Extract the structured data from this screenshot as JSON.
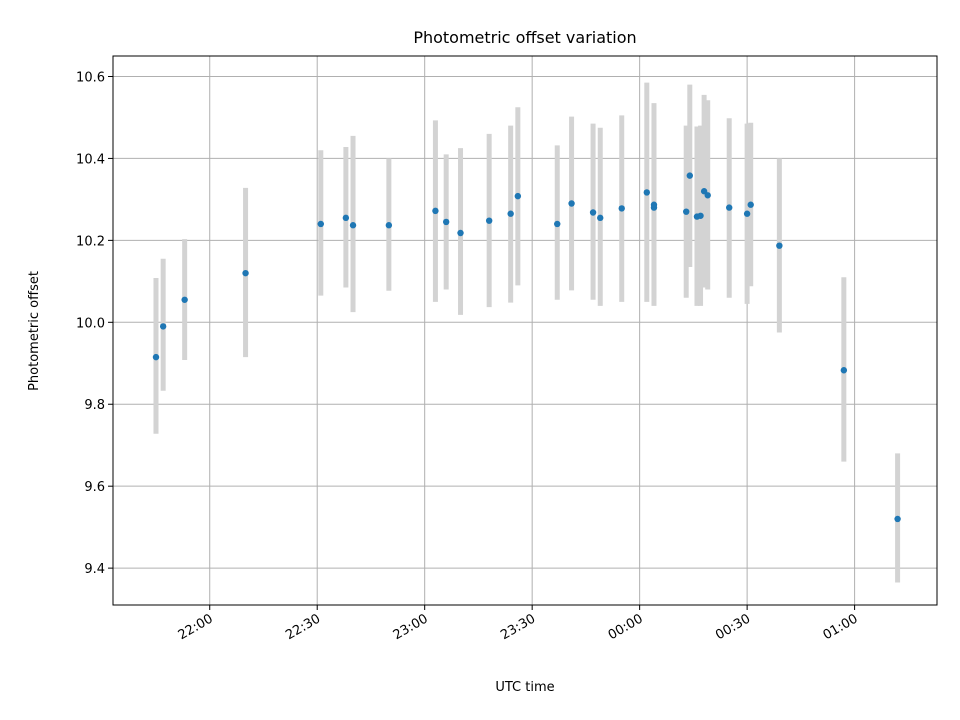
{
  "chart_data": {
    "type": "scatter",
    "title": "Photometric offset variation",
    "xlabel": "UTC time",
    "ylabel": "Photometric offset",
    "x_axis": {
      "unit": "time of day (UTC), continuing past midnight",
      "range": [
        "21:33",
        "01:23"
      ],
      "ticks": [
        "22:00",
        "22:30",
        "23:00",
        "23:30",
        "00:00",
        "00:30",
        "01:00"
      ]
    },
    "y_axis": {
      "range": [
        9.31,
        10.65
      ],
      "ticks": [
        "9.4",
        "9.6",
        "9.8",
        "10.0",
        "10.2",
        "10.4",
        "10.6"
      ]
    },
    "grid": true,
    "colors": {
      "points": "#1f77b4",
      "errorbars": "#d3d3d3",
      "grid": "#b0b0b0"
    },
    "series": [
      {
        "points": [
          {
            "x": "21:45",
            "y": 9.915,
            "lo": 9.728,
            "hi": 10.108
          },
          {
            "x": "21:47",
            "y": 9.99,
            "lo": 9.833,
            "hi": 10.155
          },
          {
            "x": "21:53",
            "y": 10.055,
            "lo": 9.908,
            "hi": 10.203
          },
          {
            "x": "22:10",
            "y": 10.12,
            "lo": 9.915,
            "hi": 10.328
          },
          {
            "x": "22:31",
            "y": 10.24,
            "lo": 10.065,
            "hi": 10.42
          },
          {
            "x": "22:38",
            "y": 10.255,
            "lo": 10.085,
            "hi": 10.428
          },
          {
            "x": "22:40",
            "y": 10.237,
            "lo": 10.025,
            "hi": 10.455
          },
          {
            "x": "22:50",
            "y": 10.237,
            "lo": 10.077,
            "hi": 10.4
          },
          {
            "x": "23:03",
            "y": 10.272,
            "lo": 10.05,
            "hi": 10.493
          },
          {
            "x": "23:06",
            "y": 10.245,
            "lo": 10.08,
            "hi": 10.41
          },
          {
            "x": "23:10",
            "y": 10.218,
            "lo": 10.018,
            "hi": 10.425
          },
          {
            "x": "23:18",
            "y": 10.248,
            "lo": 10.037,
            "hi": 10.46
          },
          {
            "x": "23:24",
            "y": 10.265,
            "lo": 10.048,
            "hi": 10.48
          },
          {
            "x": "23:26",
            "y": 10.308,
            "lo": 10.09,
            "hi": 10.525
          },
          {
            "x": "23:37",
            "y": 10.24,
            "lo": 10.055,
            "hi": 10.432
          },
          {
            "x": "23:41",
            "y": 10.29,
            "lo": 10.078,
            "hi": 10.502
          },
          {
            "x": "23:47",
            "y": 10.268,
            "lo": 10.055,
            "hi": 10.485
          },
          {
            "x": "23:49",
            "y": 10.255,
            "lo": 10.04,
            "hi": 10.475
          },
          {
            "x": "23:55",
            "y": 10.278,
            "lo": 10.05,
            "hi": 10.505
          },
          {
            "x": "00:02",
            "y": 10.317,
            "lo": 10.05,
            "hi": 10.585
          },
          {
            "x": "00:04",
            "y": 10.28,
            "lo": 10.06,
            "hi": 10.495
          },
          {
            "x": "00:04",
            "y": 10.287,
            "lo": 10.04,
            "hi": 10.535
          },
          {
            "x": "00:13",
            "y": 10.27,
            "lo": 10.06,
            "hi": 10.48
          },
          {
            "x": "00:14",
            "y": 10.358,
            "lo": 10.135,
            "hi": 10.58
          },
          {
            "x": "00:16",
            "y": 10.258,
            "lo": 10.04,
            "hi": 10.478
          },
          {
            "x": "00:17",
            "y": 10.26,
            "lo": 10.04,
            "hi": 10.48
          },
          {
            "x": "00:18",
            "y": 10.32,
            "lo": 10.085,
            "hi": 10.555
          },
          {
            "x": "00:19",
            "y": 10.31,
            "lo": 10.08,
            "hi": 10.542
          },
          {
            "x": "00:25",
            "y": 10.28,
            "lo": 10.06,
            "hi": 10.498
          },
          {
            "x": "00:30",
            "y": 10.265,
            "lo": 10.045,
            "hi": 10.485
          },
          {
            "x": "00:31",
            "y": 10.287,
            "lo": 10.088,
            "hi": 10.487
          },
          {
            "x": "00:39",
            "y": 10.187,
            "lo": 9.975,
            "hi": 10.4
          },
          {
            "x": "00:57",
            "y": 9.883,
            "lo": 9.66,
            "hi": 10.11
          },
          {
            "x": "01:12",
            "y": 9.52,
            "lo": 9.365,
            "hi": 9.68
          }
        ]
      }
    ]
  }
}
